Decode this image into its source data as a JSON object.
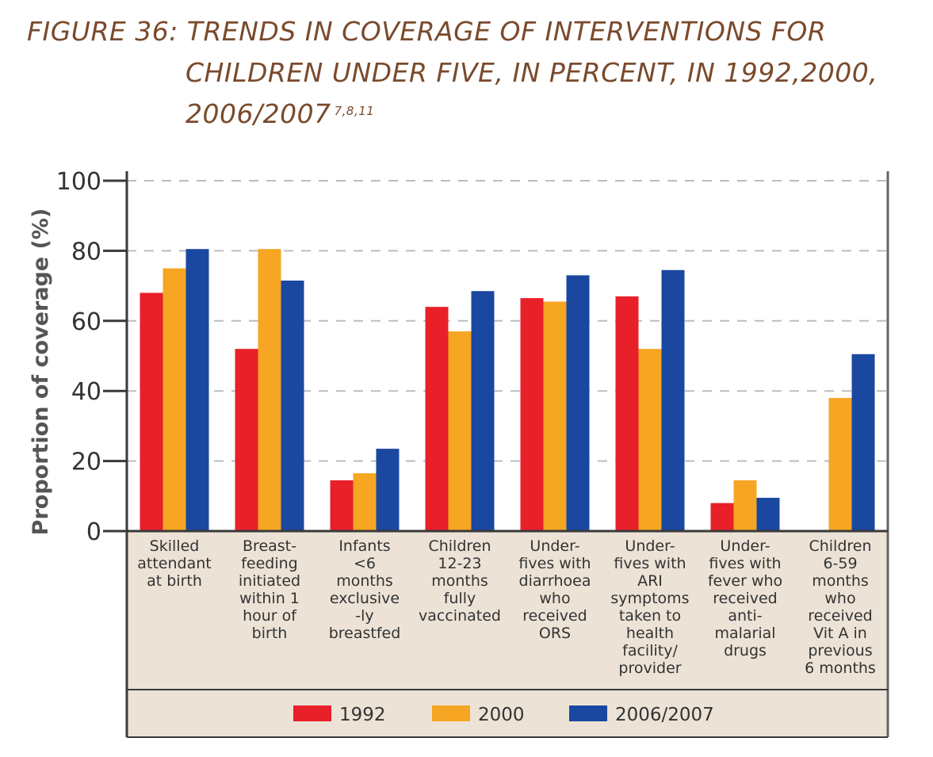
{
  "title": {
    "line1": "FIGURE 36: TRENDS IN COVERAGE OF INTERVENTIONS FOR",
    "line2": "CHILDREN UNDER FIVE, IN PERCENT, IN 1992,2000,",
    "line3": "2006/2007",
    "superscript": "7,8,11"
  },
  "chart_data": {
    "type": "bar",
    "ylabel": "Proportion of coverage (%)",
    "ylim": [
      0,
      100
    ],
    "yticks": [
      0,
      20,
      40,
      60,
      80,
      100
    ],
    "grid": true,
    "legend_position": "bottom",
    "categories": [
      [
        "Skilled",
        "attendant",
        "at birth"
      ],
      [
        "Breast-",
        "feeding",
        "initiated",
        "within 1",
        "hour of",
        "birth"
      ],
      [
        "Infants",
        "<6",
        "months",
        "exclusive",
        "-ly",
        "breastfed"
      ],
      [
        "Children",
        "12-23",
        "months",
        "fully",
        "vaccinated"
      ],
      [
        "Under-",
        "fives with",
        "diarrhoea",
        "who",
        "received",
        "ORS"
      ],
      [
        "Under-",
        "fives with",
        "ARI",
        "symptoms",
        "taken to",
        "health",
        "facility/",
        "provider"
      ],
      [
        "Under-",
        "fives with",
        "fever who",
        "received",
        "anti-",
        "malarial",
        "drugs"
      ],
      [
        "Children",
        "6-59",
        "months",
        "who",
        "received",
        "Vit A in",
        "previous",
        "6 months"
      ]
    ],
    "series": [
      {
        "name": "1992",
        "color": "#e8202a",
        "values": [
          68,
          52,
          14.5,
          64,
          66.5,
          67,
          8,
          null
        ]
      },
      {
        "name": "2000",
        "color": "#f6a623",
        "values": [
          75,
          80.5,
          16.5,
          57,
          65.5,
          52,
          14.5,
          38
        ]
      },
      {
        "name": "2006/2007",
        "color": "#1a47a0",
        "values": [
          80.5,
          71.5,
          23.5,
          68.5,
          73,
          74.5,
          9.5,
          50.5
        ]
      }
    ]
  }
}
